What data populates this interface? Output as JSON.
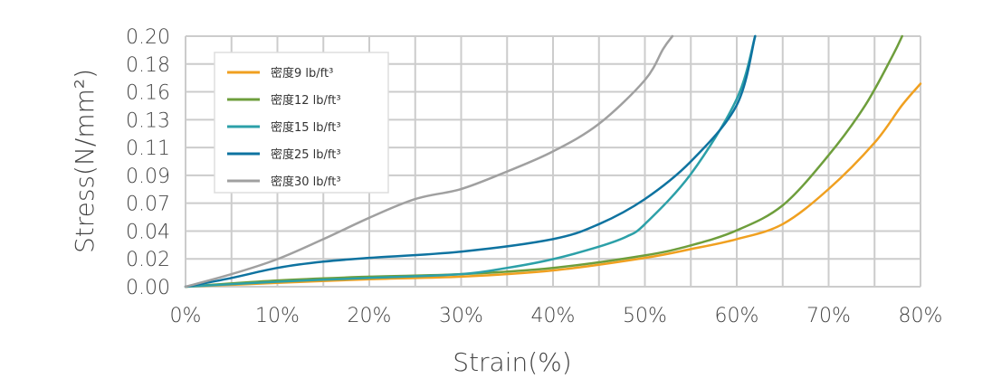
{
  "chart_data": {
    "type": "line",
    "xlabel": "Strain(%)",
    "ylabel": "Stress(N/mm²)",
    "xlim": [
      0,
      80
    ],
    "ylim": [
      0,
      0.2
    ],
    "x_ticks": [
      "0%",
      "10%",
      "20%",
      "30%",
      "40%",
      "50%",
      "60%",
      "70%",
      "80%"
    ],
    "y_ticks": [
      "0.00",
      "0.02",
      "0.04",
      "0.07",
      "0.09",
      "0.11",
      "0.13",
      "0.16",
      "0.18",
      "0.20"
    ],
    "grid": true,
    "legend_position": "top-left",
    "series": [
      {
        "name": "密度9 lb/ft³",
        "color": "#F0A020",
        "points": [
          [
            0,
            0
          ],
          [
            10,
            0.003
          ],
          [
            20,
            0.006
          ],
          [
            30,
            0.008
          ],
          [
            40,
            0.013
          ],
          [
            50,
            0.023
          ],
          [
            55,
            0.03
          ],
          [
            60,
            0.038
          ],
          [
            65,
            0.05
          ],
          [
            70,
            0.078
          ],
          [
            75,
            0.115
          ],
          [
            78,
            0.145
          ],
          [
            80,
            0.162
          ]
        ]
      },
      {
        "name": "密度12 lb/ft³",
        "color": "#6E9E3C",
        "points": [
          [
            0,
            0
          ],
          [
            10,
            0.005
          ],
          [
            20,
            0.008
          ],
          [
            30,
            0.01
          ],
          [
            40,
            0.015
          ],
          [
            50,
            0.025
          ],
          [
            55,
            0.033
          ],
          [
            60,
            0.045
          ],
          [
            65,
            0.065
          ],
          [
            70,
            0.105
          ],
          [
            74,
            0.145
          ],
          [
            77,
            0.185
          ],
          [
            78,
            0.2
          ]
        ]
      },
      {
        "name": "密度15 lb/ft³",
        "color": "#2CA0A8",
        "points": [
          [
            0,
            0
          ],
          [
            10,
            0.004
          ],
          [
            20,
            0.007
          ],
          [
            30,
            0.01
          ],
          [
            35,
            0.015
          ],
          [
            40,
            0.022
          ],
          [
            45,
            0.032
          ],
          [
            48,
            0.04
          ],
          [
            50,
            0.05
          ],
          [
            55,
            0.09
          ],
          [
            60,
            0.15
          ],
          [
            62,
            0.2
          ]
        ]
      },
      {
        "name": "密度25 lb/ft³",
        "color": "#0E73A0",
        "points": [
          [
            0,
            0
          ],
          [
            5,
            0.007
          ],
          [
            10,
            0.015
          ],
          [
            15,
            0.02
          ],
          [
            20,
            0.023
          ],
          [
            30,
            0.028
          ],
          [
            40,
            0.038
          ],
          [
            45,
            0.05
          ],
          [
            50,
            0.07
          ],
          [
            55,
            0.1
          ],
          [
            60,
            0.145
          ],
          [
            62,
            0.2
          ]
        ]
      },
      {
        "name": "密度30 lb/ft³",
        "color": "#A0A0A0",
        "points": [
          [
            0,
            0
          ],
          [
            5,
            0.01
          ],
          [
            10,
            0.022
          ],
          [
            15,
            0.038
          ],
          [
            20,
            0.055
          ],
          [
            25,
            0.07
          ],
          [
            30,
            0.078
          ],
          [
            35,
            0.092
          ],
          [
            40,
            0.108
          ],
          [
            45,
            0.13
          ],
          [
            50,
            0.165
          ],
          [
            52,
            0.19
          ],
          [
            53,
            0.2
          ]
        ]
      }
    ]
  }
}
